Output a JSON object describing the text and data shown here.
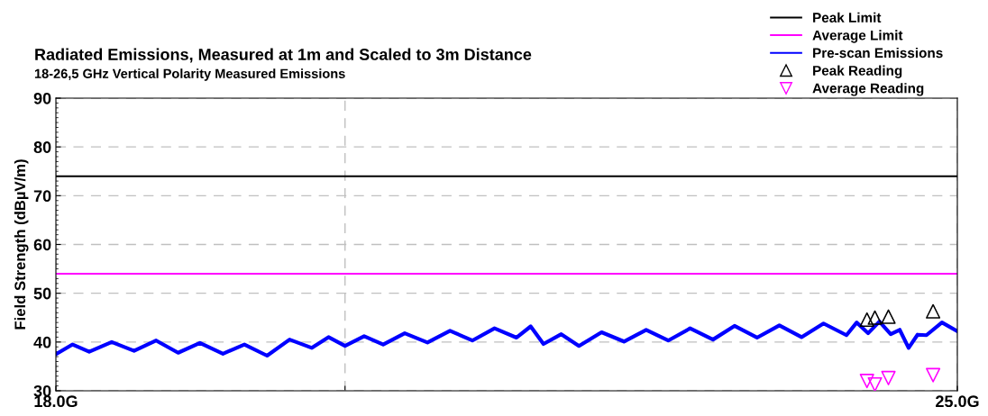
{
  "chart_data": {
    "type": "line",
    "title": "Radiated Emissions, Measured at 1m and Scaled to 3m Distance",
    "subtitle": "18-26,5 GHz Vertical Polarity Measured Emissions",
    "ylabel": "Field Strength (dBµV/m)",
    "log": "x",
    "grid": true,
    "legend": "top right",
    "xlim": [
      18,
      25
    ],
    "xticks": [
      {
        "value": 18,
        "label": "18.0G"
      },
      {
        "value": 20,
        "label": null
      },
      {
        "value": 25,
        "label": "25.0G"
      }
    ],
    "ylim": [
      30,
      90
    ],
    "yticks": [
      30,
      40,
      50,
      60,
      70,
      80,
      90
    ],
    "series": [
      {
        "name": "Peak Limit",
        "color": "#000000",
        "x": [
          18,
          25
        ],
        "values": [
          74,
          74
        ]
      },
      {
        "name": "Average Limit",
        "color": "#ff00ff",
        "x": [
          18,
          25
        ],
        "values": [
          54,
          54
        ]
      },
      {
        "name": "Pre-scan Emissions",
        "color": "#0000ff",
        "x": [
          18.0,
          18.11,
          18.22,
          18.37,
          18.52,
          18.67,
          18.82,
          18.97,
          19.13,
          19.28,
          19.44,
          19.6,
          19.76,
          19.88,
          20.0,
          20.14,
          20.28,
          20.44,
          20.61,
          20.78,
          20.95,
          21.12,
          21.29,
          21.4,
          21.5,
          21.64,
          21.78,
          21.96,
          22.14,
          22.32,
          22.5,
          22.68,
          22.87,
          23.05,
          23.24,
          23.43,
          23.62,
          23.81,
          24.01,
          24.1,
          24.2,
          24.3,
          24.4,
          24.48,
          24.56,
          24.64,
          24.72,
          24.86,
          25.0
        ],
        "values": [
          37.5,
          39.5,
          38.0,
          40.0,
          38.2,
          40.3,
          37.8,
          39.8,
          37.6,
          39.5,
          37.2,
          40.5,
          38.8,
          41.0,
          39.2,
          41.2,
          39.5,
          41.8,
          39.9,
          42.3,
          40.3,
          42.8,
          40.9,
          43.2,
          39.6,
          41.6,
          39.2,
          42.0,
          40.1,
          42.5,
          40.3,
          42.8,
          40.5,
          43.3,
          40.9,
          43.4,
          41.0,
          43.8,
          41.4,
          44.0,
          41.8,
          44.2,
          41.6,
          42.5,
          38.8,
          41.5,
          41.4,
          44.0,
          42.2
        ]
      },
      {
        "name": "Peak Reading",
        "type": "scatter",
        "marker": "triangle",
        "color": "#000000",
        "x": [
          24.19,
          24.26,
          24.38,
          24.78
        ],
        "values": [
          44.6,
          45.0,
          45.2,
          46.3
        ]
      },
      {
        "name": "Average Reading",
        "type": "scatter",
        "marker": "triangle_down",
        "color": "#ff00ff",
        "x": [
          24.19,
          24.26,
          24.38,
          24.78
        ],
        "values": [
          32.0,
          31.3,
          32.6,
          33.2
        ]
      }
    ]
  }
}
